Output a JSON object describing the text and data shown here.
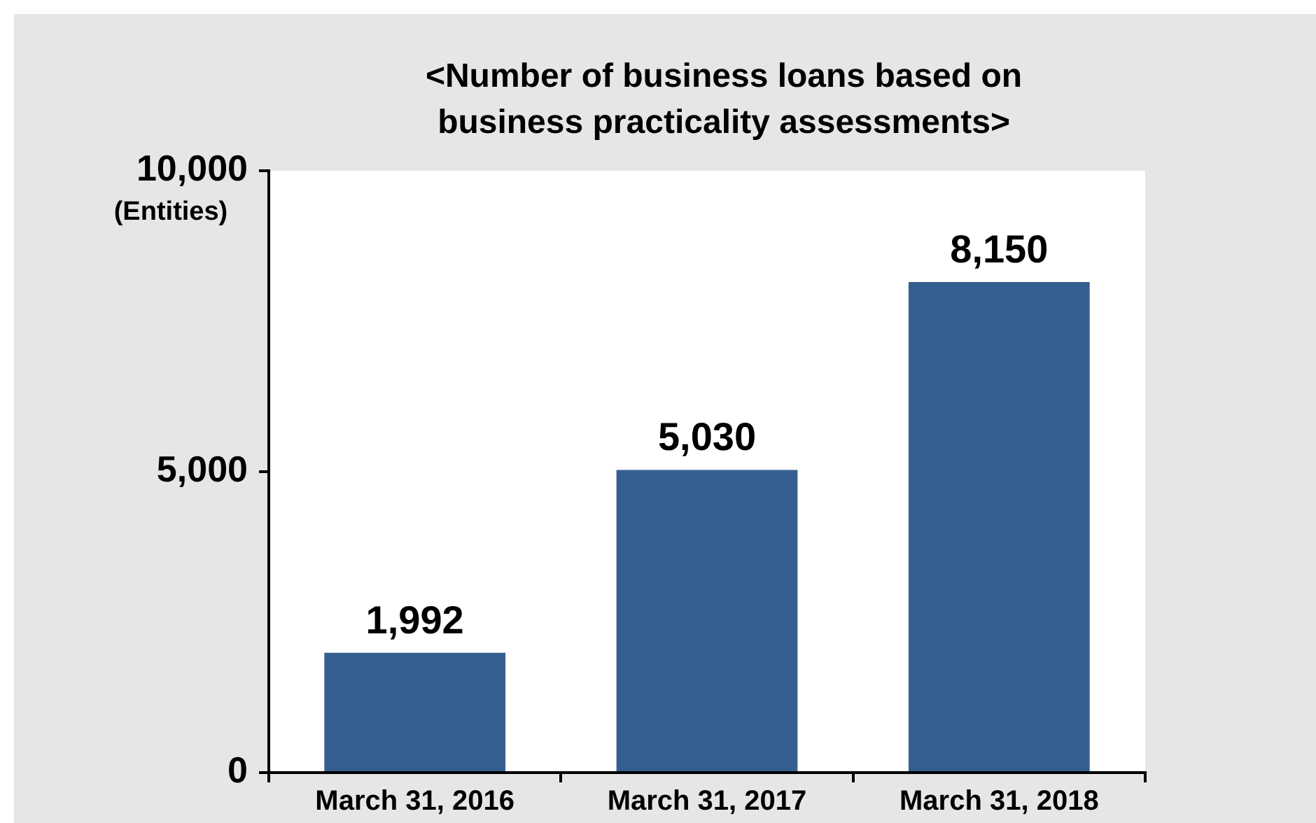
{
  "chart_data": {
    "type": "bar",
    "title": "<Number of business loans based on business practicality assessments>",
    "ylabel": "(Entities)",
    "categories": [
      "March 31, 2016",
      "March 31, 2017",
      "March 31, 2018"
    ],
    "values": [
      1992,
      5030,
      8150
    ],
    "value_labels": [
      "1,992",
      "5,030",
      "8,150"
    ],
    "color": "#365f91",
    "ylim": [
      0,
      10000
    ],
    "yticks": [
      {
        "value": 0,
        "label": "0"
      },
      {
        "value": 5000,
        "label": "5,000"
      },
      {
        "value": 10000,
        "label": "10,000"
      }
    ],
    "grid": false,
    "legend": false
  }
}
